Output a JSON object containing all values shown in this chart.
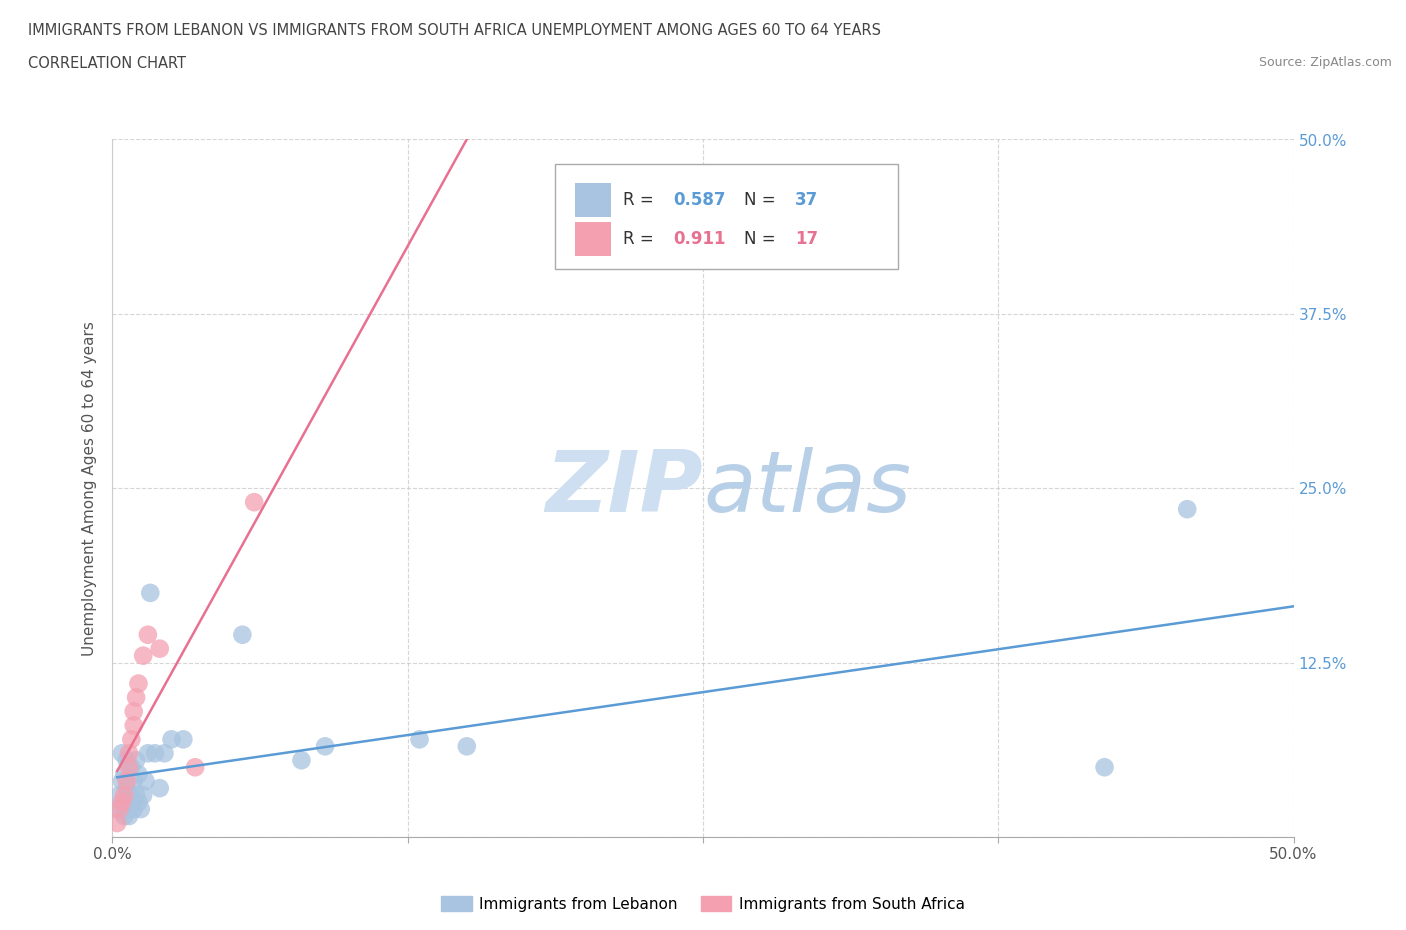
{
  "title_line1": "IMMIGRANTS FROM LEBANON VS IMMIGRANTS FROM SOUTH AFRICA UNEMPLOYMENT AMONG AGES 60 TO 64 YEARS",
  "title_line2": "CORRELATION CHART",
  "source_text": "Source: ZipAtlas.com",
  "ylabel": "Unemployment Among Ages 60 to 64 years",
  "xlim": [
    0.0,
    0.5
  ],
  "ylim": [
    0.0,
    0.5
  ],
  "xticks": [
    0.0,
    0.125,
    0.25,
    0.375,
    0.5
  ],
  "yticks": [
    0.0,
    0.125,
    0.25,
    0.375,
    0.5
  ],
  "lebanon_R": 0.587,
  "lebanon_N": 37,
  "southafrica_R": 0.911,
  "southafrica_N": 17,
  "lebanon_color": "#a8c4e0",
  "southafrica_color": "#f4a0b0",
  "lebanon_line_color": "#5b9bd5",
  "southafrica_line_color": "#e87090",
  "watermark_color": "#cddff0",
  "lebanon_x": [
    0.002,
    0.003,
    0.004,
    0.004,
    0.005,
    0.005,
    0.005,
    0.006,
    0.006,
    0.006,
    0.007,
    0.007,
    0.008,
    0.008,
    0.009,
    0.009,
    0.01,
    0.01,
    0.011,
    0.011,
    0.012,
    0.013,
    0.014,
    0.015,
    0.016,
    0.018,
    0.02,
    0.022,
    0.025,
    0.03,
    0.055,
    0.08,
    0.09,
    0.13,
    0.15,
    0.42,
    0.455
  ],
  "lebanon_y": [
    0.02,
    0.03,
    0.04,
    0.06,
    0.015,
    0.025,
    0.045,
    0.02,
    0.035,
    0.055,
    0.015,
    0.03,
    0.025,
    0.05,
    0.02,
    0.04,
    0.03,
    0.055,
    0.025,
    0.045,
    0.02,
    0.03,
    0.04,
    0.06,
    0.175,
    0.06,
    0.035,
    0.06,
    0.07,
    0.07,
    0.145,
    0.055,
    0.065,
    0.07,
    0.065,
    0.05,
    0.235
  ],
  "southafrica_x": [
    0.002,
    0.003,
    0.004,
    0.005,
    0.006,
    0.007,
    0.007,
    0.008,
    0.009,
    0.009,
    0.01,
    0.011,
    0.013,
    0.015,
    0.02,
    0.035,
    0.06
  ],
  "southafrica_y": [
    0.01,
    0.02,
    0.025,
    0.03,
    0.04,
    0.05,
    0.06,
    0.07,
    0.08,
    0.09,
    0.1,
    0.11,
    0.13,
    0.145,
    0.135,
    0.05,
    0.24
  ]
}
